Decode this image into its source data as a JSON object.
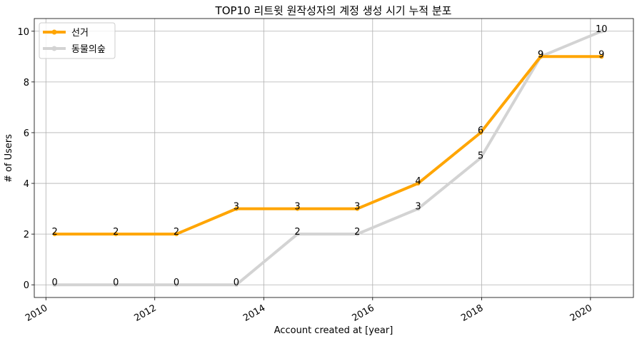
{
  "chart_data": {
    "type": "line",
    "title": "TOP10 리트윗 원작성자의 계정 생성 시기 누적 분포",
    "xlabel": "Account created at [year]",
    "ylabel": "# of Users",
    "xlim": [
      "2009-10-15",
      "2020-10-15"
    ],
    "ylim": [
      -0.5,
      10.5
    ],
    "x_ticks": [
      "2010",
      "2012",
      "2014",
      "2016",
      "2018",
      "2020"
    ],
    "y_ticks": [
      "0",
      "2",
      "4",
      "6",
      "8",
      "10"
    ],
    "grid": true,
    "legend_position": "top-left",
    "x": [
      "2010-03-01",
      "2011-04-15",
      "2012-05-25",
      "2013-07-01",
      "2014-08-15",
      "2015-09-20",
      "2016-11-01",
      "2017-12-25",
      "2019-02-01",
      "2020-03-15"
    ],
    "series": [
      {
        "name": "선거",
        "color": "#ffa500",
        "values": [
          2,
          2,
          2,
          3,
          3,
          3,
          4,
          6,
          9,
          9
        ]
      },
      {
        "name": "동물의숲",
        "color": "#d3d3d3",
        "values": [
          0,
          0,
          0,
          0,
          2,
          2,
          3,
          5,
          9,
          10
        ]
      }
    ]
  }
}
